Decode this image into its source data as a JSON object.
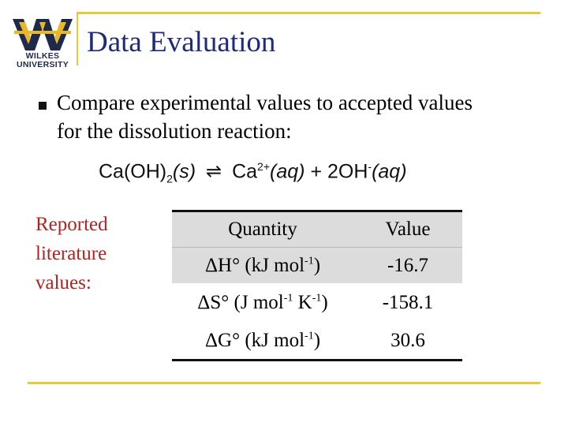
{
  "logo": {
    "line1": "WILKES",
    "line2": "UNIVERSITY",
    "colors": {
      "navy": "#1f2a4a",
      "gold": "#e8b829"
    }
  },
  "title": "Data Evaluation",
  "bullet": "Compare experimental values to accepted values for the dissolution reaction:",
  "equation": {
    "reactant": "Ca(OH)",
    "reactant_sub": "2",
    "reactant_state": "(s)",
    "arrow": "⇌",
    "product1": "Ca",
    "product1_sup": "2+",
    "product1_state": "(aq)",
    "plus": "+",
    "product2": "2OH",
    "product2_sup": "-",
    "product2_state": "(aq)"
  },
  "side_label": {
    "line1": "Reported",
    "line2": "literature",
    "line3": "values:"
  },
  "table": {
    "headers": {
      "quantity": "Quantity",
      "value": "Value"
    },
    "rows": [
      {
        "quantity_pre": "ΔH° (kJ mol",
        "quantity_sup1": "-1",
        "quantity_mid": ")",
        "quantity_sup2": "",
        "quantity_post": "",
        "value": "-16.7"
      },
      {
        "quantity_pre": "ΔS° (J mol",
        "quantity_sup1": "-1",
        "quantity_mid": " K",
        "quantity_sup2": "-1",
        "quantity_post": ")",
        "value": "-158.1"
      },
      {
        "quantity_pre": "ΔG° (kJ mol",
        "quantity_sup1": "-1",
        "quantity_mid": ")",
        "quantity_sup2": "",
        "quantity_post": "",
        "value": "30.6"
      }
    ]
  },
  "accent_color": "#e8c93a",
  "title_color": "#1f2a7a",
  "label_color": "#b22222"
}
